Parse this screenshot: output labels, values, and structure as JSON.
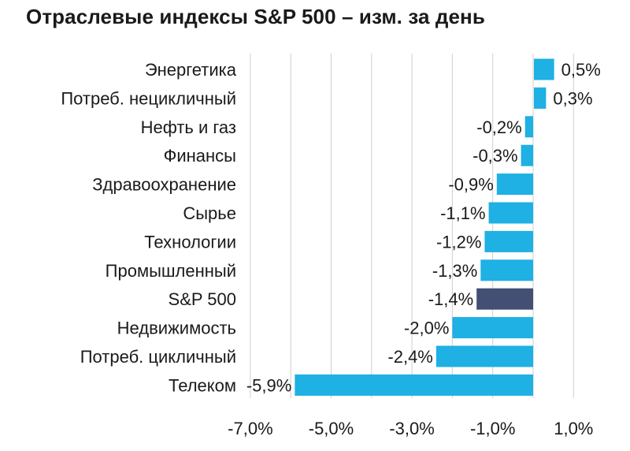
{
  "chart_data": {
    "type": "bar",
    "orientation": "horizontal",
    "title": "Отраслевые индексы S&P 500 – изм. за день",
    "categories": [
      "Энергетика",
      "Потреб. нецикличный",
      "Нефть и газ",
      "Финансы",
      "Здравоохранение",
      "Сырье",
      "Технологии",
      "Промышленный",
      "S&P 500",
      "Недвижимость",
      "Потреб. цикличный",
      "Телеком"
    ],
    "values": [
      0.5,
      0.3,
      -0.2,
      -0.3,
      -0.9,
      -1.1,
      -1.2,
      -1.3,
      -1.4,
      -2.0,
      -2.4,
      -5.9
    ],
    "value_labels": [
      "0,5%",
      "0,3%",
      "-0,2%",
      "-0,3%",
      "-0,9%",
      "-1,1%",
      "-1,2%",
      "-1,3%",
      "-1,4%",
      "-2,0%",
      "-2,4%",
      "-5,9%"
    ],
    "xlim": [
      -7.0,
      1.0
    ],
    "xticks": [
      -7.0,
      -5.0,
      -3.0,
      -1.0,
      1.0
    ],
    "xtick_labels": [
      "-7,0%",
      "-5,0%",
      "-3,0%",
      "-1,0%",
      "1,0%"
    ],
    "grid": true,
    "colors": {
      "default": "#1fb0e4",
      "highlight": "#434f73",
      "grid": "#cfcfcf"
    },
    "highlight_category": "S&P 500"
  }
}
